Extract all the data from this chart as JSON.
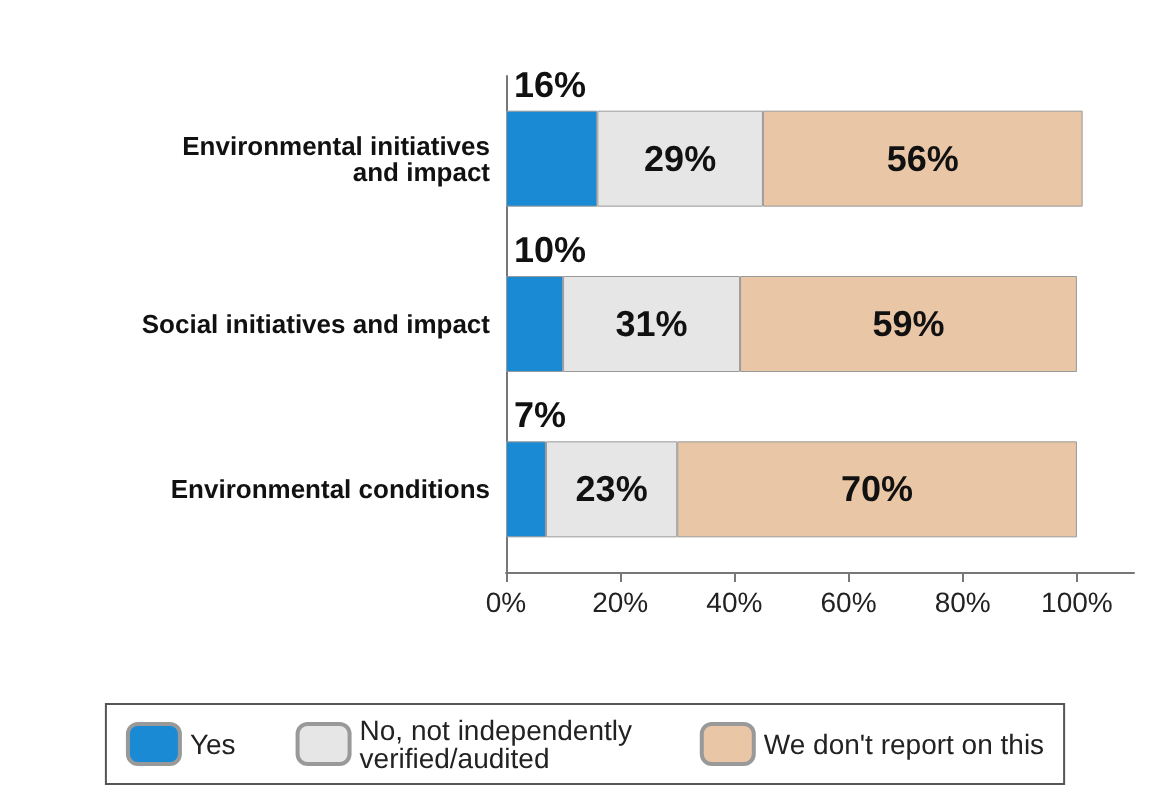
{
  "chart_data": {
    "type": "bar",
    "orientation": "horizontal",
    "stacked": true,
    "categories": [
      "Environmental initiatives\nand impact",
      "Social initiatives and impact",
      "Environmental conditions"
    ],
    "series": [
      {
        "name": "Yes",
        "color": "#1a8ad4",
        "values": [
          16,
          10,
          7
        ],
        "value_labels": [
          "16%",
          "10%",
          "7%"
        ]
      },
      {
        "name": "No, not independently verified/audited",
        "color": "#e6e6e6",
        "values": [
          29,
          31,
          23
        ],
        "value_labels": [
          "29%",
          "31%",
          "23%"
        ]
      },
      {
        "name": "We don't report on this",
        "color": "#e9c6a6",
        "values": [
          56,
          59,
          70
        ],
        "value_labels": [
          "56%",
          "59%",
          "70%"
        ]
      }
    ],
    "xlim": [
      0,
      110
    ],
    "xticks": [
      {
        "value": 0,
        "label": "0%"
      },
      {
        "value": 20,
        "label": "20%"
      },
      {
        "value": 40,
        "label": "40%"
      },
      {
        "value": 60,
        "label": "60%"
      },
      {
        "value": 80,
        "label": "80%"
      },
      {
        "value": 100,
        "label": "100%"
      }
    ],
    "grid": false,
    "legend": "bottom"
  }
}
